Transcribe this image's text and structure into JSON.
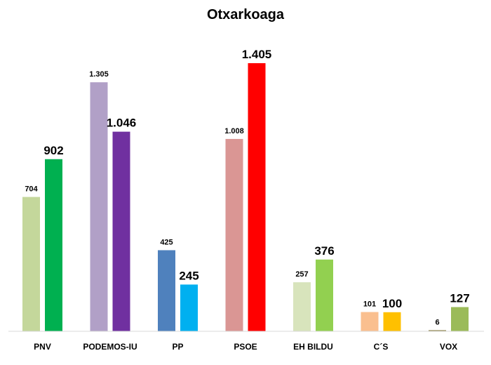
{
  "chart_data": {
    "type": "bar",
    "title": "Otxarkoaga",
    "categories": [
      "PNV",
      "PODEMOS-IU",
      "PP",
      "PSOE",
      "EH BILDU",
      "C´S",
      "VOX"
    ],
    "series": [
      {
        "values": [
          704,
          1305,
          425,
          1008,
          257,
          101,
          6
        ],
        "value_labels": [
          "704",
          "1.305",
          "425",
          "1.008",
          "257",
          "101",
          "6"
        ],
        "colors": [
          "#c4d79b",
          "#b1a0c7",
          "#4f81bd",
          "#da9694",
          "#d8e4bc",
          "#fabf8f",
          "#938953"
        ]
      },
      {
        "values": [
          902,
          1046,
          245,
          1405,
          376,
          100,
          127
        ],
        "value_labels": [
          "902",
          "1.046",
          "245",
          "1.405",
          "376",
          "100",
          "127"
        ],
        "colors": [
          "#00b050",
          "#7030a0",
          "#00b0f0",
          "#ff0000",
          "#92d050",
          "#ffc000",
          "#9bbb59"
        ]
      }
    ],
    "ylim": [
      0,
      1500
    ],
    "grid": false,
    "legend": "none"
  }
}
